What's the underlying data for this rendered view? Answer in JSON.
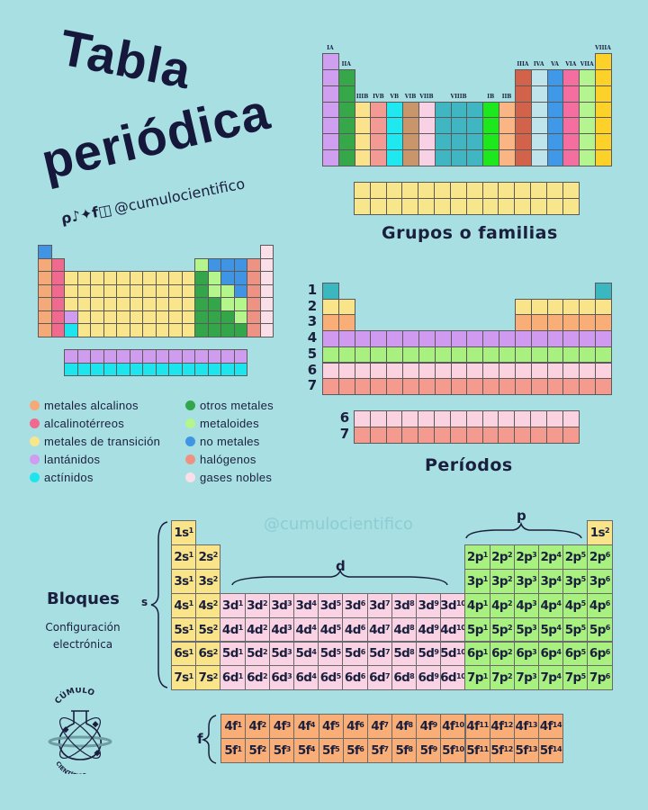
{
  "title": {
    "line1": "Tabla",
    "line2": "periódica",
    "handle": "@cumulocientifico",
    "social_icons": [
      "pinterest-icon",
      "tiktok-icon",
      "twitter-icon",
      "facebook-icon",
      "instagram-icon"
    ]
  },
  "groups": {
    "caption": "Grupos o familias",
    "columns": [
      {
        "label": "IA",
        "top": 0,
        "color": "#cfa0f0"
      },
      {
        "label": "IIA",
        "top": 1,
        "color": "#37a84a"
      },
      {
        "label": "IIIB",
        "top": 3,
        "color": "#fbe38c"
      },
      {
        "label": "IVB",
        "top": 3,
        "color": "#f49a94"
      },
      {
        "label": "VB",
        "top": 3,
        "color": "#20e8f0"
      },
      {
        "label": "VIB",
        "top": 3,
        "color": "#c9956a"
      },
      {
        "label": "VIIB",
        "top": 3,
        "color": "#f8d2e4"
      },
      {
        "label": "VIIIB",
        "top": 3,
        "color": "#3fb6c2",
        "span": 3
      },
      {
        "label": "",
        "top": 3,
        "color": "#3fb6c2"
      },
      {
        "label": "",
        "top": 3,
        "color": "#3fb6c2"
      },
      {
        "label": "IB",
        "top": 3,
        "color": "#1de81d"
      },
      {
        "label": "IIB",
        "top": 3,
        "color": "#f9b584"
      },
      {
        "label": "IIIA",
        "top": 1,
        "color": "#d2624a"
      },
      {
        "label": "IVA",
        "top": 1,
        "color": "#c0e4ec"
      },
      {
        "label": "VA",
        "top": 1,
        "color": "#3f98e8"
      },
      {
        "label": "VIA",
        "top": 1,
        "color": "#f56ea0"
      },
      {
        "label": "VIIA",
        "top": 1,
        "color": "#b5f590"
      },
      {
        "label": "VIIIA",
        "top": 0,
        "color": "#fcd12a"
      }
    ],
    "f_color": "#f7e68c"
  },
  "classification": {
    "colors": {
      "a": "#f5a878",
      "t": "#f0698e",
      "m": "#f9e58c",
      "l": "#cf9cf0",
      "c": "#1ee4ee",
      "o": "#34a64a",
      "s": "#b4f58c",
      "n": "#3f95e3",
      "h": "#ee9384",
      "g": "#fbdfe8"
    },
    "rows": [
      "n................g",
      "at..........snnnhg",
      "atmmmmmmmmmmosnnhg",
      "atmmmmmmmmmmossnhg",
      "atmmmmmmmmmmoosshg",
      "atlmmmmmmmmmooosHg",
      "atcmmmmmmmmmooooHg"
    ],
    "f_rows": [
      "llllllllllllll",
      "cccccccccccccc"
    ]
  },
  "legend": [
    {
      "label": "metales alcalinos",
      "color": "#f5a878"
    },
    {
      "label": "alcalinotérreos",
      "color": "#f0698e"
    },
    {
      "label": "metales de transición",
      "color": "#f9e58c"
    },
    {
      "label": "lantánidos",
      "color": "#cf9cf0"
    },
    {
      "label": "actínidos",
      "color": "#1ee4ee"
    },
    {
      "label": "otros metales",
      "color": "#34a64a"
    },
    {
      "label": "metaloides",
      "color": "#b4f58c"
    },
    {
      "label": "no metales",
      "color": "#3f95e3"
    },
    {
      "label": "halógenos",
      "color": "#ee9384"
    },
    {
      "label": "gases nobles",
      "color": "#fbdfe8"
    }
  ],
  "periods": {
    "caption": "Períodos",
    "labels": [
      "1",
      "2",
      "3",
      "4",
      "5",
      "6",
      "7"
    ],
    "colors": [
      "#3bb7bf",
      "#f9e48a",
      "#f9ae78",
      "#cf9af0",
      "#a8f080",
      "#fbd2df",
      "#f59a8e"
    ],
    "f_labels": [
      "6",
      "7"
    ]
  },
  "blocks": {
    "title": "Bloques",
    "subtitle": "Configuración electrónica",
    "watermark": "@cumulocientifico",
    "labels": {
      "s": "s",
      "p": "p",
      "d": "d",
      "f": "f"
    },
    "colors": {
      "s": "#f9e48a",
      "d": "#f9d3e3",
      "p": "#a8f080",
      "f": "#f9ae78"
    },
    "rows": [
      [
        [
          "1s",
          "1"
        ],
        null,
        null,
        null,
        null,
        null,
        null,
        null,
        null,
        null,
        null,
        null,
        null,
        null,
        null,
        null,
        null,
        [
          "1s",
          "2"
        ]
      ],
      [
        [
          "2s",
          "1"
        ],
        [
          "2s",
          "2"
        ],
        null,
        null,
        null,
        null,
        null,
        null,
        null,
        null,
        null,
        null,
        [
          "2p",
          "1"
        ],
        [
          "2p",
          "2"
        ],
        [
          "2p",
          "3"
        ],
        [
          "2p",
          "4"
        ],
        [
          "2p",
          "5"
        ],
        [
          "2p",
          "6"
        ]
      ],
      [
        [
          "3s",
          "1"
        ],
        [
          "3s",
          "2"
        ],
        null,
        null,
        null,
        null,
        null,
        null,
        null,
        null,
        null,
        null,
        [
          "3p",
          "1"
        ],
        [
          "3p",
          "2"
        ],
        [
          "3p",
          "3"
        ],
        [
          "3p",
          "4"
        ],
        [
          "3p",
          "5"
        ],
        [
          "3p",
          "6"
        ]
      ],
      [
        [
          "4s",
          "1"
        ],
        [
          "4s",
          "2"
        ],
        [
          "3d",
          "1"
        ],
        [
          "3d",
          "2"
        ],
        [
          "3d",
          "3"
        ],
        [
          "3d",
          "4"
        ],
        [
          "3d",
          "5"
        ],
        [
          "3d",
          "6"
        ],
        [
          "3d",
          "7"
        ],
        [
          "3d",
          "8"
        ],
        [
          "3d",
          "9"
        ],
        [
          "3d",
          "10"
        ],
        [
          "4p",
          "1"
        ],
        [
          "4p",
          "2"
        ],
        [
          "4p",
          "3"
        ],
        [
          "4p",
          "4"
        ],
        [
          "4p",
          "5"
        ],
        [
          "4p",
          "6"
        ]
      ],
      [
        [
          "5s",
          "1"
        ],
        [
          "5s",
          "2"
        ],
        [
          "4d",
          "1"
        ],
        [
          "4d",
          "2"
        ],
        [
          "4d",
          "3"
        ],
        [
          "4d",
          "4"
        ],
        [
          "4d",
          "5"
        ],
        [
          "4d",
          "6"
        ],
        [
          "4d",
          "7"
        ],
        [
          "4d",
          "8"
        ],
        [
          "4d",
          "9"
        ],
        [
          "4d",
          "10"
        ],
        [
          "5p",
          "1"
        ],
        [
          "5p",
          "2"
        ],
        [
          "5p",
          "3"
        ],
        [
          "5p",
          "4"
        ],
        [
          "5p",
          "5"
        ],
        [
          "5p",
          "6"
        ]
      ],
      [
        [
          "6s",
          "1"
        ],
        [
          "6s",
          "2"
        ],
        [
          "5d",
          "1"
        ],
        [
          "5d",
          "2"
        ],
        [
          "5d",
          "3"
        ],
        [
          "5d",
          "4"
        ],
        [
          "5d",
          "5"
        ],
        [
          "5d",
          "6"
        ],
        [
          "5d",
          "7"
        ],
        [
          "5d",
          "8"
        ],
        [
          "5d",
          "9"
        ],
        [
          "5d",
          "10"
        ],
        [
          "6p",
          "1"
        ],
        [
          "6p",
          "2"
        ],
        [
          "6p",
          "3"
        ],
        [
          "6p",
          "4"
        ],
        [
          "6p",
          "5"
        ],
        [
          "6p",
          "6"
        ]
      ],
      [
        [
          "7s",
          "1"
        ],
        [
          "7s",
          "2"
        ],
        [
          "6d",
          "1"
        ],
        [
          "6d",
          "2"
        ],
        [
          "6d",
          "3"
        ],
        [
          "6d",
          "4"
        ],
        [
          "6d",
          "5"
        ],
        [
          "6d",
          "6"
        ],
        [
          "6d",
          "7"
        ],
        [
          "6d",
          "8"
        ],
        [
          "6d",
          "9"
        ],
        [
          "6d",
          "10"
        ],
        [
          "7p",
          "1"
        ],
        [
          "7p",
          "2"
        ],
        [
          "7p",
          "3"
        ],
        [
          "7p",
          "4"
        ],
        [
          "7p",
          "5"
        ],
        [
          "7p",
          "6"
        ]
      ]
    ],
    "f_rows": [
      [
        [
          "4f",
          "1"
        ],
        [
          "4f",
          "2"
        ],
        [
          "4f",
          "3"
        ],
        [
          "4f",
          "4"
        ],
        [
          "4f",
          "5"
        ],
        [
          "4f",
          "6"
        ],
        [
          "4f",
          "7"
        ],
        [
          "4f",
          "8"
        ],
        [
          "4f",
          "9"
        ],
        [
          "4f",
          "10"
        ],
        [
          "4f",
          "11"
        ],
        [
          "4f",
          "12"
        ],
        [
          "4f",
          "13"
        ],
        [
          "4f",
          "14"
        ]
      ],
      [
        [
          "5f",
          "1"
        ],
        [
          "5f",
          "2"
        ],
        [
          "5f",
          "3"
        ],
        [
          "5f",
          "4"
        ],
        [
          "5f",
          "5"
        ],
        [
          "5f",
          "6"
        ],
        [
          "5f",
          "7"
        ],
        [
          "5f",
          "8"
        ],
        [
          "5f",
          "9"
        ],
        [
          "5f",
          "10"
        ],
        [
          "5f",
          "11"
        ],
        [
          "5f",
          "12"
        ],
        [
          "5f",
          "13"
        ],
        [
          "5f",
          "14"
        ]
      ]
    ]
  },
  "logo": {
    "top_text": "CÚMULO",
    "bottom_text": "CIENTÍFICO"
  }
}
